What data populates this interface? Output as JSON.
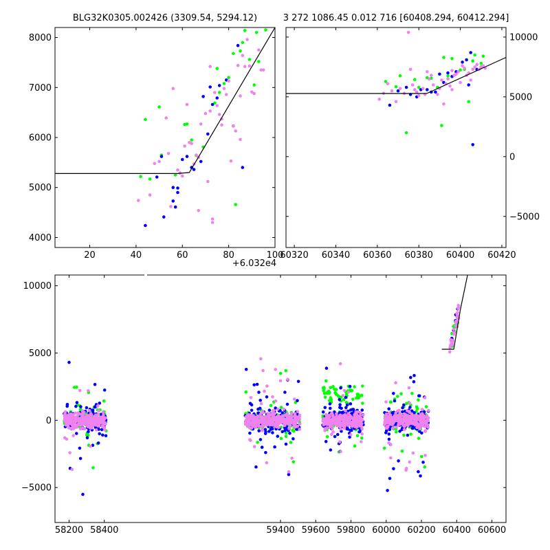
{
  "title_left": "BLG32K0305.002426 (3309.54, 5294.12)",
  "title_right": "3 272 1086.45 0.012 716 [60408.294, 60412.294]",
  "offset_text": "+6.032e4",
  "colors": {
    "green": "#00ff00",
    "blue": "#0000ff",
    "pink": "#ee82ee",
    "line": "#000000"
  },
  "chart_data": [
    {
      "id": "top-left",
      "type": "scatter",
      "title": "BLG32K0305.002426 (3309.54, 5294.12)",
      "xlim": [
        5,
        100
      ],
      "ylim": [
        3800,
        8200
      ],
      "xticks": [
        20,
        40,
        60,
        80,
        100
      ],
      "xtick_labels": [
        "20",
        "40",
        "60",
        "80",
        "100"
      ],
      "yticks": [
        4000,
        5000,
        6000,
        7000,
        8000
      ],
      "ytick_labels": [
        "4000",
        "5000",
        "6000",
        "7000",
        "8000"
      ],
      "model_line": [
        [
          5,
          5280
        ],
        [
          58,
          5280
        ],
        [
          63,
          5300
        ],
        [
          100,
          8200
        ]
      ],
      "series": [
        {
          "color": "green",
          "points": [
            [
              42,
              5220
            ],
            [
              44,
              6360
            ],
            [
              46,
              5170
            ],
            [
              50,
              6610
            ],
            [
              51,
              5650
            ],
            [
              57,
              5250
            ],
            [
              61,
              6260
            ],
            [
              62,
              6270
            ],
            [
              64,
              5950
            ],
            [
              66,
              5640
            ],
            [
              69,
              5810
            ],
            [
              74,
              6690
            ],
            [
              75,
              7380
            ],
            [
              78,
              7080
            ],
            [
              80,
              7200
            ],
            [
              82,
              7680
            ],
            [
              83,
              4660
            ],
            [
              85,
              7730
            ],
            [
              86,
              7900
            ],
            [
              87,
              8140
            ],
            [
              89,
              7560
            ],
            [
              92,
              8100
            ],
            [
              93,
              7520
            ],
            [
              96,
              8150
            ],
            [
              91,
              7050
            ],
            [
              76,
              6900
            ]
          ]
        },
        {
          "color": "blue",
          "points": [
            [
              44,
              4240
            ],
            [
              49,
              5210
            ],
            [
              51,
              5620
            ],
            [
              52,
              4410
            ],
            [
              56,
              5000
            ],
            [
              56,
              4730
            ],
            [
              57,
              4610
            ],
            [
              58,
              4990
            ],
            [
              58,
              4900
            ],
            [
              60,
              5560
            ],
            [
              62,
              5620
            ],
            [
              64,
              5400
            ],
            [
              65,
              5360
            ],
            [
              68,
              5520
            ],
            [
              69,
              6820
            ],
            [
              71,
              6070
            ],
            [
              72,
              7010
            ],
            [
              75,
              6790
            ],
            [
              76,
              7040
            ],
            [
              79,
              7150
            ],
            [
              82,
              6230
            ],
            [
              84,
              7840
            ],
            [
              86,
              5400
            ],
            [
              88,
              8270
            ],
            [
              73,
              6660
            ]
          ]
        },
        {
          "color": "pink",
          "points": [
            [
              41,
              4740
            ],
            [
              46,
              4850
            ],
            [
              48,
              5480
            ],
            [
              50,
              5520
            ],
            [
              53,
              6390
            ],
            [
              54,
              5680
            ],
            [
              55,
              4620
            ],
            [
              56,
              6980
            ],
            [
              58,
              5350
            ],
            [
              59,
              5290
            ],
            [
              60,
              5230
            ],
            [
              61,
              5830
            ],
            [
              62,
              6660
            ],
            [
              63,
              5900
            ],
            [
              64,
              5880
            ],
            [
              65,
              5470
            ],
            [
              66,
              5650
            ],
            [
              67,
              5600
            ],
            [
              68,
              6270
            ],
            [
              70,
              6480
            ],
            [
              71,
              5120
            ],
            [
              72,
              6530
            ],
            [
              73,
              4300
            ],
            [
              73,
              4370
            ],
            [
              74,
              6900
            ],
            [
              75,
              6640
            ],
            [
              76,
              6460
            ],
            [
              77,
              6370
            ],
            [
              78,
              6980
            ],
            [
              79,
              6860
            ],
            [
              80,
              7130
            ],
            [
              81,
              5530
            ],
            [
              82,
              6230
            ],
            [
              83,
              6130
            ],
            [
              84,
              7440
            ],
            [
              85,
              5960
            ],
            [
              86,
              7640
            ],
            [
              87,
              7420
            ],
            [
              88,
              7960
            ],
            [
              89,
              7430
            ],
            [
              90,
              6910
            ],
            [
              91,
              6880
            ],
            [
              92,
              8250
            ],
            [
              93,
              7750
            ],
            [
              94,
              7350
            ],
            [
              95,
              7350
            ],
            [
              67,
              4540
            ],
            [
              72,
              7420
            ],
            [
              77,
              6250
            ],
            [
              85,
              6830
            ]
          ]
        }
      ]
    },
    {
      "id": "top-right",
      "type": "scatter",
      "xlim": [
        60316,
        60422
      ],
      "ylim": [
        -7600,
        10800
      ],
      "xticks": [
        60320,
        60340,
        60360,
        60380,
        60400,
        60420
      ],
      "xtick_labels": [
        "60320",
        "60340",
        "60360",
        "60380",
        "60400",
        "60420"
      ],
      "yticks": [
        -5000,
        0,
        5000,
        10000
      ],
      "ytick_labels": [
        "−5000",
        "0",
        "5000",
        "10000"
      ],
      "model_line": [
        [
          60316,
          5280
        ],
        [
          60383,
          5280
        ],
        [
          60384,
          5300
        ],
        [
          60422,
          8300
        ]
      ],
      "series": [
        {
          "color": "green",
          "points": [
            [
              60364,
              6280
            ],
            [
              60369,
              5850
            ],
            [
              60371,
              6760
            ],
            [
              60374,
              2000
            ],
            [
              60378,
              6450
            ],
            [
              60380,
              5800
            ],
            [
              60384,
              6600
            ],
            [
              60386,
              6550
            ],
            [
              60389,
              5800
            ],
            [
              60391,
              2600
            ],
            [
              60392,
              8300
            ],
            [
              60394,
              6750
            ],
            [
              60396,
              8200
            ],
            [
              60398,
              7000
            ],
            [
              60400,
              7250
            ],
            [
              60402,
              7300
            ],
            [
              60404,
              4600
            ],
            [
              60406,
              8000
            ],
            [
              60408,
              7700
            ],
            [
              60410,
              7800
            ],
            [
              60411,
              8400
            ],
            [
              60407,
              8500
            ]
          ]
        },
        {
          "color": "blue",
          "points": [
            [
              60366,
              4300
            ],
            [
              60370,
              5500
            ],
            [
              60374,
              5800
            ],
            [
              60376,
              5200
            ],
            [
              60379,
              5000
            ],
            [
              60381,
              5600
            ],
            [
              60384,
              5600
            ],
            [
              60386,
              5400
            ],
            [
              60388,
              5400
            ],
            [
              60390,
              6900
            ],
            [
              60392,
              6200
            ],
            [
              60394,
              7000
            ],
            [
              60396,
              6700
            ],
            [
              60398,
              7100
            ],
            [
              60401,
              7900
            ],
            [
              60403,
              8100
            ],
            [
              60404,
              6000
            ],
            [
              60406,
              1000
            ],
            [
              60408,
              7300
            ],
            [
              60410,
              7500
            ],
            [
              60405,
              8700
            ]
          ]
        },
        {
          "color": "pink",
          "points": [
            [
              60361,
              4800
            ],
            [
              60363,
              5300
            ],
            [
              60365,
              6100
            ],
            [
              60367,
              5500
            ],
            [
              60369,
              4600
            ],
            [
              60371,
              5700
            ],
            [
              60373,
              5300
            ],
            [
              60375,
              10400
            ],
            [
              60377,
              6000
            ],
            [
              60378,
              5600
            ],
            [
              60379,
              5400
            ],
            [
              60380,
              5100
            ],
            [
              60382,
              5700
            ],
            [
              60383,
              5200
            ],
            [
              60385,
              6500
            ],
            [
              60386,
              6800
            ],
            [
              60387,
              6000
            ],
            [
              60389,
              5200
            ],
            [
              60390,
              5700
            ],
            [
              60391,
              6400
            ],
            [
              60392,
              4400
            ],
            [
              60393,
              6100
            ],
            [
              60394,
              6500
            ],
            [
              60395,
              5900
            ],
            [
              60396,
              7200
            ],
            [
              60397,
              6800
            ],
            [
              60398,
              6900
            ],
            [
              60399,
              7100
            ],
            [
              60400,
              6200
            ],
            [
              60401,
              7600
            ],
            [
              60402,
              7400
            ],
            [
              60403,
              6800
            ],
            [
              60404,
              7000
            ],
            [
              60405,
              6400
            ],
            [
              60406,
              7300
            ],
            [
              60407,
              7500
            ],
            [
              60408,
              7700
            ],
            [
              60409,
              7300
            ],
            [
              60410,
              7500
            ],
            [
              60411,
              7600
            ],
            [
              60412,
              7400
            ],
            [
              60384,
              7100
            ],
            [
              60376,
              7300
            ],
            [
              60396,
              5600
            ]
          ]
        }
      ]
    },
    {
      "id": "bottom",
      "type": "scatter",
      "xlim": [
        58120,
        60680
      ],
      "ylim": [
        -7600,
        10800
      ],
      "xticks": [
        58200,
        58400,
        59400,
        59600,
        59800,
        60000,
        60200,
        60400,
        60600
      ],
      "xtick_labels": [
        "58200",
        "58400",
        "59400",
        "59600",
        "59800",
        "60000",
        "60200",
        "60400",
        "60600"
      ],
      "yticks": [
        -5000,
        0,
        5000,
        10000
      ],
      "ytick_labels": [
        "−5000",
        "0",
        "5000",
        "10000"
      ],
      "model_line": [
        [
          60316,
          5280
        ],
        [
          60383,
          5280
        ],
        [
          60384,
          5300
        ],
        [
          60422,
          8300
        ],
        [
          60462,
          10800
        ]
      ],
      "seasons": [
        [
          58170,
          58410
        ],
        [
          59200,
          59510
        ],
        [
          59640,
          59870
        ],
        [
          59990,
          60240
        ],
        [
          60360,
          60412
        ]
      ],
      "series_colors": [
        "green",
        "blue",
        "pink"
      ]
    }
  ]
}
